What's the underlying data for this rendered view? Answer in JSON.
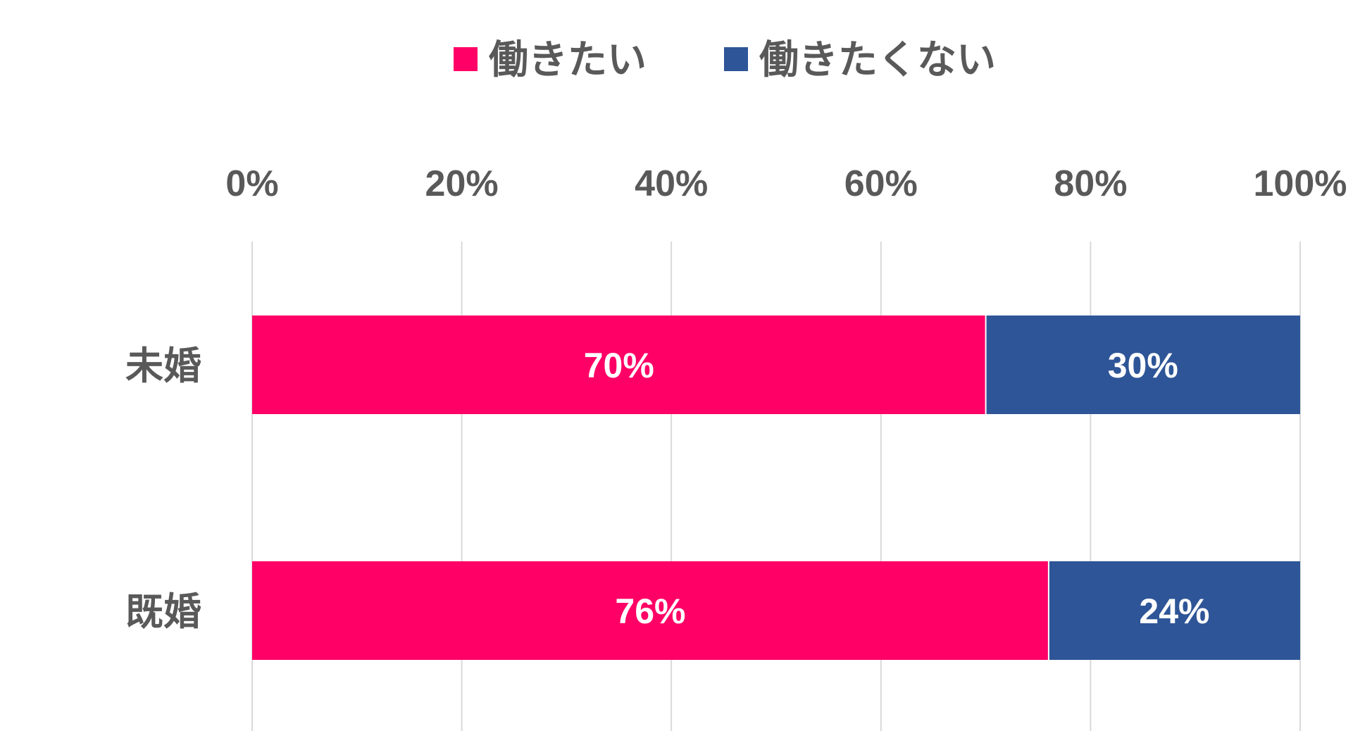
{
  "chart_data": {
    "type": "bar",
    "orientation": "horizontal",
    "stacked": true,
    "categories": [
      "未婚",
      "既婚"
    ],
    "series": [
      {
        "name": "働きたい",
        "values": [
          70,
          76
        ],
        "color": "#FF0066",
        "labels": [
          "70%",
          "76%"
        ]
      },
      {
        "name": "働きたくない",
        "values": [
          30,
          24
        ],
        "color": "#2E5597",
        "labels": [
          "30%",
          "24%"
        ]
      }
    ],
    "xlim": [
      0,
      100
    ],
    "x_ticks": [
      0,
      20,
      40,
      60,
      80,
      100
    ],
    "x_tick_labels": [
      "0%",
      "20%",
      "40%",
      "60%",
      "80%",
      "100%"
    ],
    "grid": true,
    "legend_position": "top-center",
    "x_axis_position": "top",
    "title": "",
    "xlabel": "",
    "ylabel": ""
  }
}
